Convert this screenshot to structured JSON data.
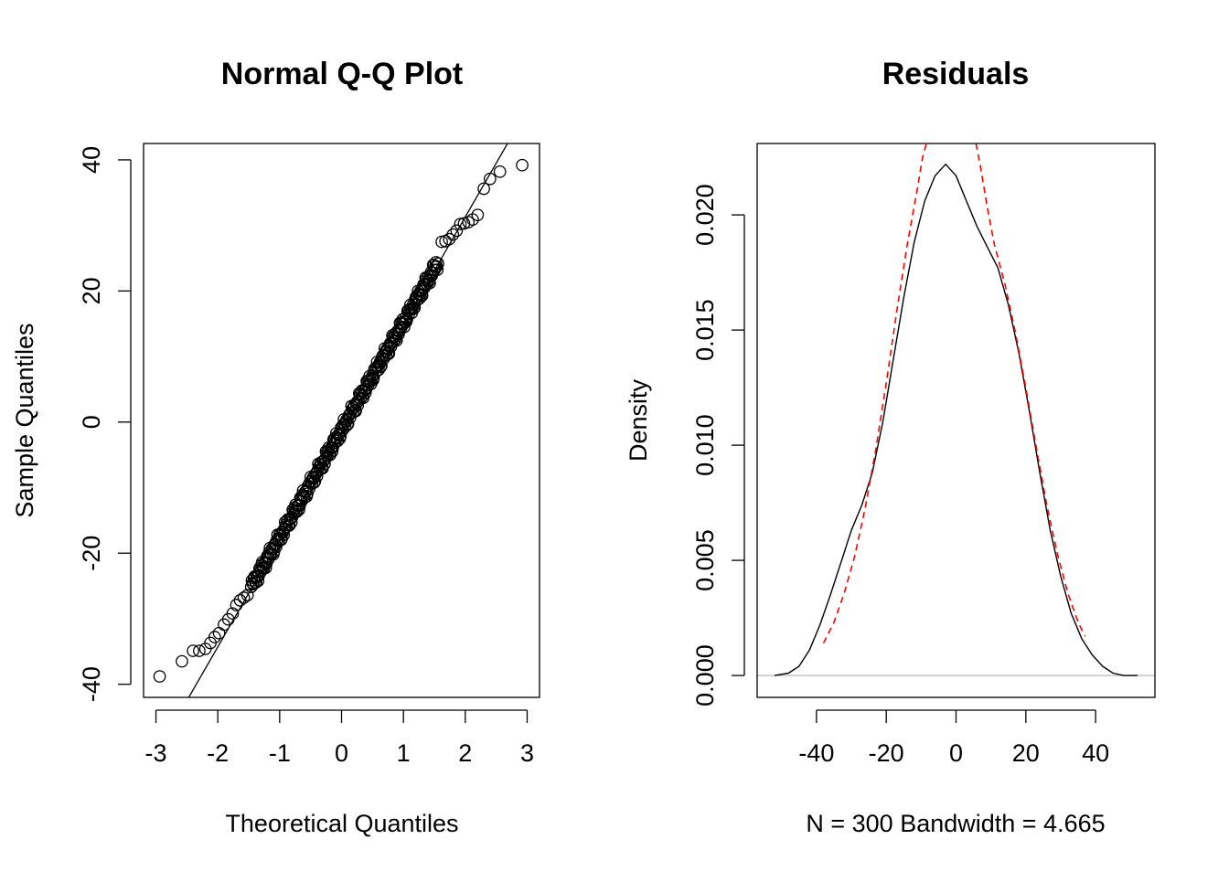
{
  "chart_data": [
    {
      "type": "scatter",
      "title": "Normal Q-Q Plot",
      "xlabel": "Theoretical Quantiles",
      "ylabel": "Sample Quantiles",
      "xlim": [
        -3.2,
        3.2
      ],
      "ylim": [
        -42,
        42.5
      ],
      "xticks": [
        -3,
        -2,
        -1,
        0,
        1,
        2,
        3
      ],
      "yticks": [
        -40,
        -20,
        0,
        20,
        40
      ],
      "grid": false,
      "n_points": 300,
      "reference_line": {
        "slope": 16.4,
        "intercept": -1.5
      },
      "tail_points": {
        "low": [
          [
            -2.94,
            -38.8
          ],
          [
            -2.58,
            -36.5
          ],
          [
            -2.4,
            -34.9
          ],
          [
            -2.3,
            -34.9
          ],
          [
            -2.2,
            -34.6
          ],
          [
            -2.12,
            -33.7
          ],
          [
            -2.05,
            -32.8
          ],
          [
            -1.98,
            -32.2
          ],
          [
            -1.9,
            -30.9
          ],
          [
            -1.83,
            -30.1
          ],
          [
            -1.76,
            -29.2
          ],
          [
            -1.7,
            -27.9
          ],
          [
            -1.64,
            -27.2
          ],
          [
            -1.58,
            -26.8
          ],
          [
            -1.52,
            -26.4
          ]
        ],
        "high": [
          [
            1.62,
            27.5
          ],
          [
            1.68,
            27.6
          ],
          [
            1.74,
            27.9
          ],
          [
            1.8,
            28.6
          ],
          [
            1.86,
            29.2
          ],
          [
            1.92,
            30.2
          ],
          [
            1.98,
            30.3
          ],
          [
            2.05,
            30.5
          ],
          [
            2.12,
            30.9
          ],
          [
            2.2,
            31.6
          ],
          [
            2.3,
            35.6
          ],
          [
            2.4,
            37.1
          ],
          [
            2.56,
            38.2
          ],
          [
            2.92,
            39.2
          ]
        ]
      }
    },
    {
      "type": "line",
      "title": "Residuals",
      "xlabel": "N = 300   Bandwidth = 4.665",
      "ylabel": "Density",
      "xlim": [
        -57,
        57
      ],
      "ylim": [
        -0.00095,
        0.0231
      ],
      "xticks": [
        -40,
        -20,
        0,
        20,
        40
      ],
      "yticks": [
        0.0,
        0.005,
        0.01,
        0.015,
        0.02
      ],
      "ytick_labels": [
        "0.000",
        "0.005",
        "0.010",
        "0.015",
        "0.020"
      ],
      "grid": false,
      "baseline": {
        "y": 0,
        "color": "#bebebe"
      },
      "series": [
        {
          "color": "#000000",
          "dash": false,
          "points": [
            [
              -52,
              0.0
            ],
            [
              -48,
              0.0001
            ],
            [
              -45,
              0.0004
            ],
            [
              -42,
              0.0011
            ],
            [
              -39,
              0.0022
            ],
            [
              -36,
              0.0035
            ],
            [
              -33,
              0.0049
            ],
            [
              -30,
              0.0063
            ],
            [
              -27,
              0.0074
            ],
            [
              -24,
              0.0088
            ],
            [
              -21,
              0.011
            ],
            [
              -18,
              0.0137
            ],
            [
              -15,
              0.0164
            ],
            [
              -12,
              0.0188
            ],
            [
              -9,
              0.0206
            ],
            [
              -6,
              0.0217
            ],
            [
              -3,
              0.0222
            ],
            [
              0,
              0.0217
            ],
            [
              3,
              0.0206
            ],
            [
              6,
              0.0195
            ],
            [
              9,
              0.0186
            ],
            [
              12,
              0.0177
            ],
            [
              15,
              0.0161
            ],
            [
              18,
              0.014
            ],
            [
              21,
              0.0115
            ],
            [
              24,
              0.0088
            ],
            [
              27,
              0.0063
            ],
            [
              30,
              0.0043
            ],
            [
              33,
              0.0027
            ],
            [
              36,
              0.0016
            ],
            [
              39,
              0.0009
            ],
            [
              42,
              0.0004
            ],
            [
              45,
              0.0001
            ],
            [
              48,
              0.0
            ],
            [
              52,
              0.0
            ]
          ]
        },
        {
          "color": "#ff0000",
          "dash": true,
          "points": [
            [
              -38,
              0.0014
            ],
            [
              -35,
              0.0023
            ],
            [
              -32,
              0.0036
            ],
            [
              -29,
              0.0052
            ],
            [
              -26,
              0.0073
            ],
            [
              -23,
              0.0098
            ],
            [
              -20,
              0.0127
            ],
            [
              -17,
              0.0158
            ],
            [
              -14,
              0.0187
            ],
            [
              -11,
              0.0212
            ],
            [
              -9.6,
              0.0225
            ],
            [
              -8.5,
              0.0231
            ]
          ]
        },
        {
          "color": "#ff0000",
          "dash": true,
          "points": [
            [
              5.7,
              0.0231
            ],
            [
              7,
              0.0221
            ],
            [
              9,
              0.0203
            ],
            [
              11,
              0.0187
            ],
            [
              14,
              0.017
            ],
            [
              17,
              0.0149
            ],
            [
              20,
              0.0125
            ],
            [
              23,
              0.0099
            ],
            [
              26,
              0.0074
            ],
            [
              29,
              0.0053
            ],
            [
              32,
              0.0036
            ],
            [
              35,
              0.0023
            ],
            [
              37,
              0.0017
            ]
          ]
        }
      ]
    }
  ]
}
